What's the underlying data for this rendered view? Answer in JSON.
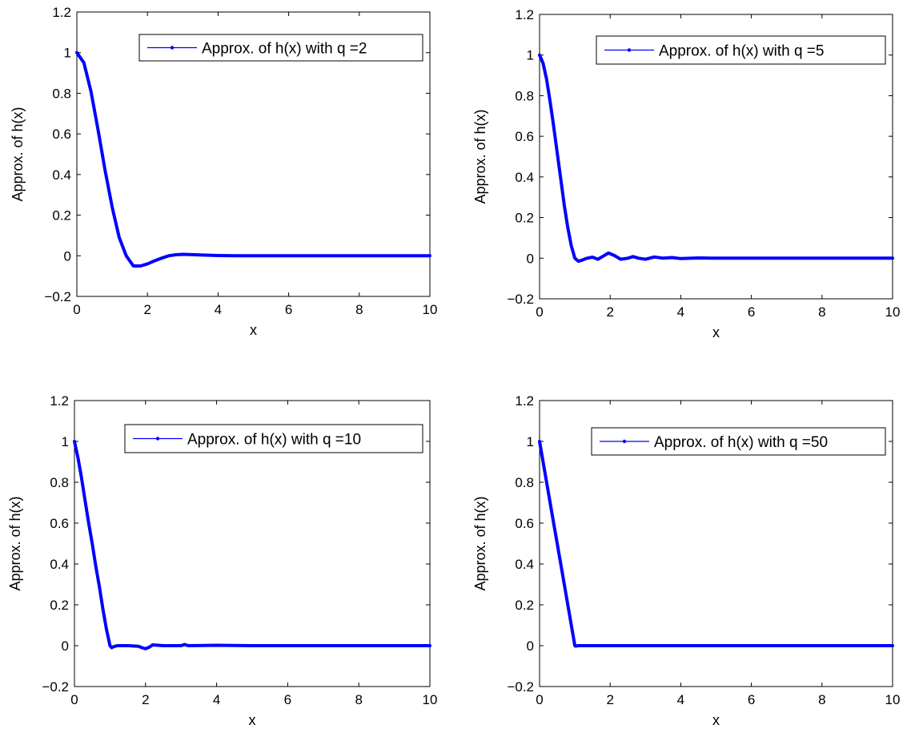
{
  "colors": {
    "series": "#0000ff",
    "axes": "#000000",
    "background": "#ffffff"
  },
  "chart_data": [
    {
      "type": "line",
      "xlabel": "x",
      "ylabel": "Approx. of h(x)",
      "xlim": [
        0,
        10
      ],
      "ylim": [
        -0.2,
        1.2
      ],
      "xticks": [
        "0",
        "2",
        "4",
        "6",
        "8",
        "10"
      ],
      "yticks": [
        "−0.2",
        "0",
        "0.2",
        "0.4",
        "0.6",
        "0.8",
        "1",
        "1.2"
      ],
      "grid": false,
      "legend_position": "top-right",
      "series": [
        {
          "name": "Approx. of h(x) with q =2",
          "x": [
            0,
            0.2,
            0.4,
            0.6,
            0.8,
            1.0,
            1.2,
            1.4,
            1.6,
            1.8,
            2.0,
            2.2,
            2.4,
            2.6,
            2.8,
            3.0,
            3.2,
            3.5,
            4.0,
            4.5,
            5.0,
            6.0,
            7.0,
            8.0,
            9.0,
            10.0
          ],
          "y": [
            1.0,
            0.95,
            0.81,
            0.62,
            0.42,
            0.24,
            0.09,
            0.0,
            -0.05,
            -0.05,
            -0.04,
            -0.025,
            -0.012,
            0.0,
            0.005,
            0.007,
            0.006,
            0.004,
            0.001,
            0.0,
            0.0,
            0.0,
            0.0,
            0.0,
            0.0,
            0.0
          ]
        }
      ]
    },
    {
      "type": "line",
      "xlabel": "x",
      "ylabel": "Approx. of h(x)",
      "xlim": [
        0,
        10
      ],
      "ylim": [
        -0.2,
        1.2
      ],
      "xticks": [
        "0",
        "2",
        "4",
        "6",
        "8",
        "10"
      ],
      "yticks": [
        "−0.2",
        "0",
        "0.2",
        "0.4",
        "0.6",
        "0.8",
        "1",
        "1.2"
      ],
      "grid": false,
      "legend_position": "top-right",
      "series": [
        {
          "name": "Approx. of h(x) with q =5",
          "x": [
            0,
            0.1,
            0.2,
            0.3,
            0.4,
            0.5,
            0.6,
            0.7,
            0.8,
            0.9,
            1.0,
            1.1,
            1.2,
            1.35,
            1.5,
            1.65,
            1.8,
            1.95,
            2.1,
            2.3,
            2.5,
            2.65,
            2.8,
            3.0,
            3.25,
            3.5,
            3.75,
            4.0,
            4.5,
            5.0,
            6.0,
            7.0,
            8.0,
            9.0,
            10.0
          ],
          "y": [
            1.0,
            0.96,
            0.88,
            0.77,
            0.65,
            0.52,
            0.39,
            0.26,
            0.15,
            0.06,
            0.0,
            -0.015,
            -0.01,
            0.0,
            0.005,
            -0.005,
            0.01,
            0.025,
            0.015,
            -0.005,
            0.0,
            0.008,
            0.0,
            -0.005,
            0.006,
            0.0,
            0.003,
            -0.002,
            0.001,
            0.0,
            0.0,
            0.0,
            0.0,
            0.0,
            0.0
          ]
        }
      ]
    },
    {
      "type": "line",
      "xlabel": "x",
      "ylabel": "Approx. of h(x)",
      "xlim": [
        0,
        10
      ],
      "ylim": [
        -0.2,
        1.2
      ],
      "xticks": [
        "0",
        "2",
        "4",
        "6",
        "8",
        "10"
      ],
      "yticks": [
        "−0.2",
        "0",
        "0.2",
        "0.4",
        "0.6",
        "0.8",
        "1",
        "1.2"
      ],
      "grid": false,
      "legend_position": "top-right",
      "series": [
        {
          "name": "Approx. of h(x) with q =10",
          "x": [
            0,
            0.1,
            0.2,
            0.3,
            0.4,
            0.5,
            0.6,
            0.7,
            0.8,
            0.9,
            1.0,
            1.05,
            1.1,
            1.2,
            1.5,
            1.8,
            1.9,
            2.0,
            2.1,
            2.2,
            2.5,
            3.0,
            3.1,
            3.2,
            4.0,
            5.0,
            6.0,
            8.0,
            10.0
          ],
          "y": [
            1.0,
            0.92,
            0.82,
            0.71,
            0.6,
            0.5,
            0.39,
            0.29,
            0.18,
            0.08,
            0.0,
            -0.01,
            -0.005,
            0.0,
            0.0,
            -0.003,
            -0.01,
            -0.015,
            -0.008,
            0.004,
            0.0,
            0.0,
            0.006,
            0.0,
            0.002,
            0.0,
            0.0,
            0.0,
            0.0
          ]
        }
      ]
    },
    {
      "type": "line",
      "xlabel": "x",
      "ylabel": "Approx. of h(x)",
      "xlim": [
        0,
        10
      ],
      "ylim": [
        -0.2,
        1.2
      ],
      "xticks": [
        "0",
        "2",
        "4",
        "6",
        "8",
        "10"
      ],
      "yticks": [
        "−0.2",
        "0",
        "0.2",
        "0.4",
        "0.6",
        "0.8",
        "1",
        "1.2"
      ],
      "grid": false,
      "legend_position": "top-right",
      "series": [
        {
          "name": "Approx. of h(x) with q =50",
          "x": [
            0,
            0.2,
            0.4,
            0.6,
            0.8,
            1.0,
            1.02,
            1.1,
            2.0,
            3.0,
            4.0,
            5.0,
            6.0,
            7.0,
            8.0,
            9.0,
            10.0
          ],
          "y": [
            1.0,
            0.8,
            0.6,
            0.4,
            0.2,
            0.0,
            -0.002,
            0.0,
            0.0,
            0.0,
            0.0,
            0.0,
            0.0,
            0.0,
            0.0,
            0.0,
            0.0
          ]
        }
      ]
    }
  ]
}
